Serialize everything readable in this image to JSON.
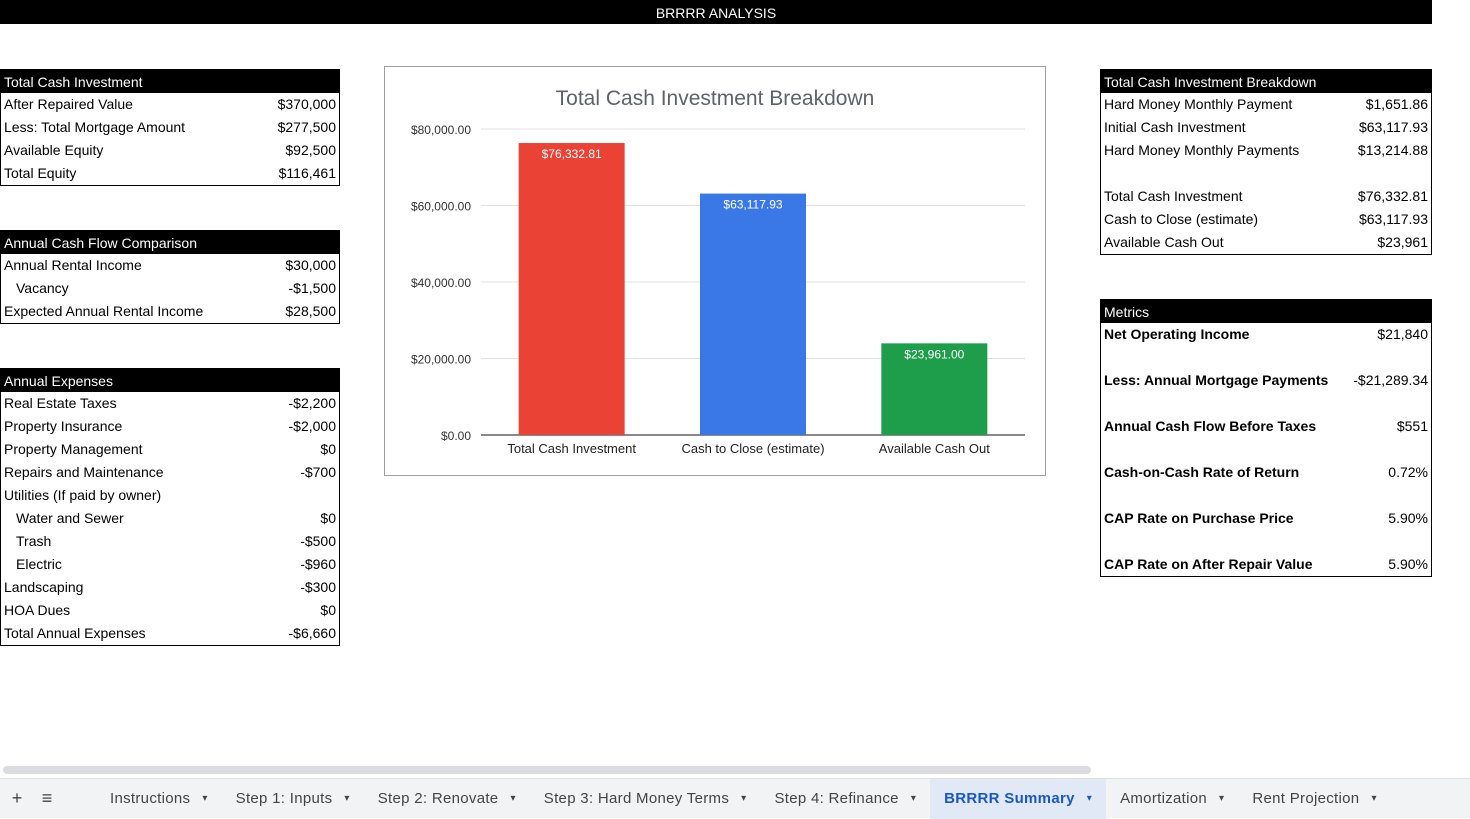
{
  "title": "BRRRR ANALYSIS",
  "equity_table": {
    "header": "Total Cash Investment",
    "rows": [
      {
        "label": "After Repaired Value",
        "value": "$370,000"
      },
      {
        "label": "Less: Total Mortgage Amount",
        "value": "$277,500"
      },
      {
        "label": "Available Equity",
        "value": "$92,500"
      },
      {
        "label": "Total Equity",
        "value": "$116,461"
      }
    ]
  },
  "cashflow_table": {
    "header": "Annual Cash Flow Comparison",
    "rows": [
      {
        "label": "Annual Rental Income",
        "value": "$30,000"
      },
      {
        "label": "Vacancy",
        "value": "-$1,500"
      },
      {
        "label": "Expected Annual Rental Income",
        "value": "$28,500"
      }
    ]
  },
  "expenses_table": {
    "header": "Annual Expenses",
    "rows": [
      {
        "label": "Real Estate Taxes",
        "value": "-$2,200"
      },
      {
        "label": "Property Insurance",
        "value": "-$2,000"
      },
      {
        "label": "Property Management",
        "value": "$0"
      },
      {
        "label": "Repairs and Maintenance",
        "value": "-$700"
      },
      {
        "label": "Utilities (If paid by owner)",
        "value": ""
      },
      {
        "label": "Water and Sewer",
        "value": "$0"
      },
      {
        "label": "Trash",
        "value": "-$500"
      },
      {
        "label": "Electric",
        "value": "-$960"
      },
      {
        "label": "Landscaping",
        "value": "-$300"
      },
      {
        "label": "HOA Dues",
        "value": "$0"
      },
      {
        "label": "Total Annual Expenses",
        "value": "-$6,660"
      }
    ]
  },
  "breakdown_table": {
    "header": "Total Cash Investment Breakdown",
    "rows": [
      {
        "label": "Hard Money Monthly Payment",
        "value": "$1,651.86"
      },
      {
        "label": "Initial Cash Investment",
        "value": "$63,117.93"
      },
      {
        "label": "Hard Money Monthly Payments",
        "value": "$13,214.88"
      },
      {
        "label": "Total Cash Investment",
        "value": "$76,332.81"
      },
      {
        "label": "Cash to Close (estimate)",
        "value": "$63,117.93"
      },
      {
        "label": "Available Cash Out",
        "value": "$23,961"
      }
    ]
  },
  "metrics_table": {
    "header": "Metrics",
    "rows": [
      {
        "label": "Net Operating Income",
        "value": "$21,840"
      },
      {
        "label": "Less: Annual Mortgage Payments",
        "value": "-$21,289.34"
      },
      {
        "label": "Annual Cash Flow Before Taxes",
        "value": "$551"
      },
      {
        "label": "Cash-on-Cash Rate of Return",
        "value": "0.72%"
      },
      {
        "label": "CAP Rate on Purchase Price",
        "value": "5.90%"
      },
      {
        "label": "CAP Rate on After Repair Value",
        "value": "5.90%"
      }
    ]
  },
  "chart_data": {
    "type": "bar",
    "title": "Total Cash Investment Breakdown",
    "categories": [
      "Total Cash Investment",
      "Cash to Close (estimate)",
      "Available Cash Out"
    ],
    "values": [
      76332.81,
      63117.93,
      23961.0
    ],
    "data_labels": [
      "$76,332.81",
      "$63,117.93",
      "$23,961.00"
    ],
    "colors": [
      "#ea4335",
      "#3b78e7",
      "#1e9e4a"
    ],
    "ylim": [
      0,
      80000
    ],
    "yticks": [
      "$0.00",
      "$20,000.00",
      "$40,000.00",
      "$60,000.00",
      "$80,000.00"
    ],
    "ytick_values": [
      0,
      20000,
      40000,
      60000,
      80000
    ],
    "grid": true,
    "legend": "none"
  },
  "tabs": {
    "add_icon": "+",
    "menu_icon": "≡",
    "items": [
      {
        "label": "Instructions"
      },
      {
        "label": "Step 1: Inputs"
      },
      {
        "label": "Step 2: Renovate"
      },
      {
        "label": "Step 3: Hard Money Terms"
      },
      {
        "label": "Step 4: Refinance"
      },
      {
        "label": "BRRRR Summary",
        "active": true
      },
      {
        "label": "Amortization"
      },
      {
        "label": "Rent Projection"
      }
    ],
    "caret": "▾"
  }
}
